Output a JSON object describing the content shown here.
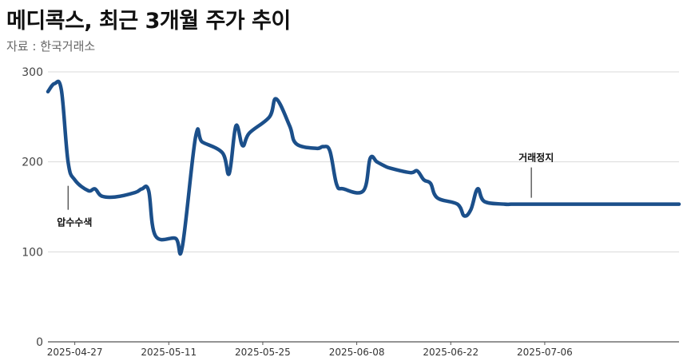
{
  "title": "메디콕스, 최근 3개월 주가 추이",
  "source": "자료 : 한국거래소",
  "colors": {
    "line": "#1b4f8a",
    "grid": "#d9d9d9",
    "axis": "#555555"
  },
  "chart_data": {
    "type": "line",
    "x_axis_type": "date",
    "ylim": [
      0,
      300
    ],
    "y_ticks": [
      0,
      100,
      200,
      300
    ],
    "x_ticks": [
      "2025-04-27",
      "2025-05-11",
      "2025-05-25",
      "2025-06-08",
      "2025-06-22",
      "2025-07-06"
    ],
    "x_range": [
      "2025-04-23",
      "2025-07-26"
    ],
    "grid": true,
    "series": [
      {
        "x": [
          "2025-04-23",
          "2025-04-24",
          "2025-04-25",
          "2025-04-26",
          "2025-04-27",
          "2025-04-29",
          "2025-04-30",
          "2025-05-01",
          "2025-05-03",
          "2025-05-06",
          "2025-05-07",
          "2025-05-08",
          "2025-05-09",
          "2025-05-12",
          "2025-05-13",
          "2025-05-15",
          "2025-05-16",
          "2025-05-19",
          "2025-05-20",
          "2025-05-21",
          "2025-05-22",
          "2025-05-23",
          "2025-05-26",
          "2025-05-27",
          "2025-05-29",
          "2025-05-30",
          "2025-06-02",
          "2025-06-03",
          "2025-06-04",
          "2025-06-05",
          "2025-06-06",
          "2025-06-09",
          "2025-06-10",
          "2025-06-11",
          "2025-06-12",
          "2025-06-13",
          "2025-06-16",
          "2025-06-17",
          "2025-06-18",
          "2025-06-19",
          "2025-06-20",
          "2025-06-23",
          "2025-06-24",
          "2025-06-25",
          "2025-06-26",
          "2025-06-27",
          "2025-06-30",
          "2025-07-01",
          "2025-07-02",
          "2025-07-03",
          "2025-07-26"
        ],
        "values": [
          278,
          287,
          280,
          200,
          180,
          168,
          170,
          162,
          161,
          166,
          170,
          168,
          118,
          115,
          105,
          228,
          222,
          210,
          187,
          240,
          218,
          232,
          250,
          270,
          240,
          220,
          215,
          217,
          212,
          175,
          170,
          168,
          204,
          200,
          196,
          193,
          188,
          190,
          180,
          176,
          160,
          153,
          140,
          147,
          170,
          156,
          153,
          153,
          153,
          153,
          153
        ]
      }
    ],
    "annotations": [
      {
        "text": "압수수색",
        "x": "2025-04-26"
      },
      {
        "text": "거래정지",
        "x": "2025-07-04"
      }
    ]
  }
}
